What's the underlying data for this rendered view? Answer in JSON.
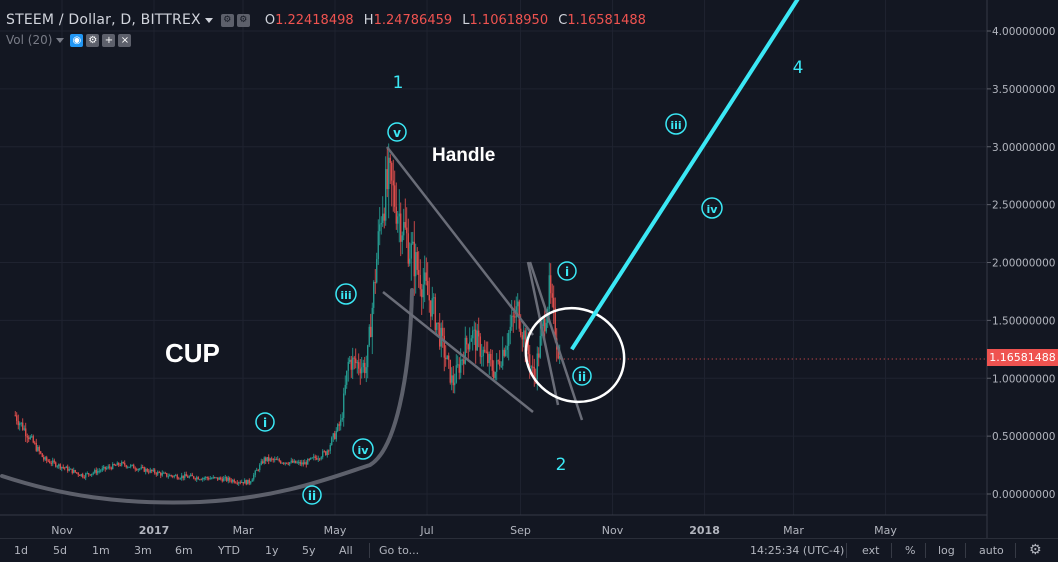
{
  "header": {
    "symbol": "STEEM / Dollar, D, BITTREX",
    "open_key": "O",
    "open": "1.22418498",
    "high_key": "H",
    "high": "1.24786459",
    "low_key": "L",
    "low": "1.10618950",
    "close_key": "C",
    "close": "1.16581488"
  },
  "volume": {
    "label": "Vol (20)"
  },
  "current_price": "1.16581488",
  "colors": {
    "background": "#131722",
    "up": "#26a69a",
    "down": "#ef5350",
    "projection": "#3be8f5",
    "wave_labels": "#3be8f5"
  },
  "chart_data": {
    "type": "candlestick",
    "title": "STEEM / Dollar, D, BITTREX",
    "x_ticks": [
      "Nov",
      "2017",
      "Mar",
      "May",
      "Jul",
      "Sep",
      "Nov",
      "2018",
      "Mar",
      "May"
    ],
    "x_tick_positions": [
      "2016-11-01",
      "2017-01-01",
      "2017-03-01",
      "2017-05-01",
      "2017-07-01",
      "2017-09-01",
      "2017-11-01",
      "2018-01-01",
      "2018-03-01",
      "2018-05-01"
    ],
    "y_ticks": [
      "0.00000000",
      "0.50000000",
      "1.00000000",
      "1.50000000",
      "2.00000000",
      "2.50000000",
      "3.00000000",
      "3.50000000",
      "4.00000000"
    ],
    "ylim": [
      -0.2,
      4.2
    ],
    "price_path": [
      [
        "2016-10-01",
        0.68
      ],
      [
        "2016-10-20",
        0.3
      ],
      [
        "2016-11-15",
        0.16
      ],
      [
        "2016-12-10",
        0.26
      ],
      [
        "2017-01-10",
        0.16
      ],
      [
        "2017-02-15",
        0.13
      ],
      [
        "2017-03-05",
        0.1
      ],
      [
        "2017-03-15",
        0.3
      ],
      [
        "2017-04-10",
        0.26
      ],
      [
        "2017-04-25",
        0.36
      ],
      [
        "2017-05-05",
        0.62
      ],
      [
        "2017-05-10",
        1.15
      ],
      [
        "2017-05-22",
        1.1
      ],
      [
        "2017-06-01",
        2.5
      ],
      [
        "2017-06-06",
        2.7
      ],
      [
        "2017-06-20",
        2.1
      ],
      [
        "2017-07-05",
        1.6
      ],
      [
        "2017-07-18",
        0.95
      ],
      [
        "2017-07-30",
        1.4
      ],
      [
        "2017-08-15",
        1.05
      ],
      [
        "2017-08-30",
        1.6
      ],
      [
        "2017-09-10",
        1.0
      ],
      [
        "2017-09-20",
        1.75
      ],
      [
        "2017-09-27",
        1.17
      ]
    ],
    "annotations": {
      "cup_label": "CUP",
      "handle_label": "Handle",
      "major_waves": [
        "1",
        "2",
        "4"
      ],
      "minor_waves": [
        "i",
        "ii",
        "iii",
        "iv",
        "v",
        "i",
        "ii",
        "iii",
        "iv"
      ]
    },
    "projection_line": {
      "start": [
        "2017-10-05",
        1.25
      ],
      "end": [
        "2018-03-05",
        4.3
      ]
    }
  },
  "toolbar": {
    "ranges": [
      "1d",
      "5d",
      "1m",
      "3m",
      "6m",
      "YTD",
      "1y",
      "5y",
      "All"
    ],
    "goto": "Go to...",
    "clock": "14:25:34 (UTC-4)",
    "ext": "ext",
    "pct": "%",
    "log": "log",
    "auto": "auto"
  }
}
